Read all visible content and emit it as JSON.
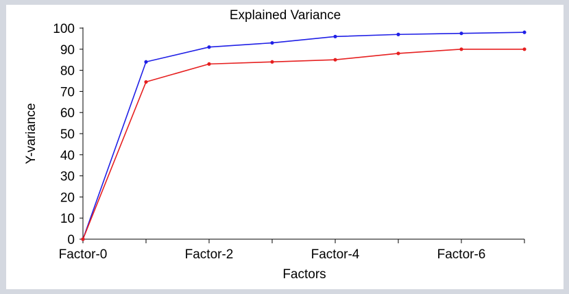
{
  "chart_data": {
    "type": "line",
    "title": "Explained Variance",
    "xlabel": "Factors",
    "ylabel": "Y-variance",
    "x": [
      0,
      1,
      2,
      3,
      4,
      5,
      6,
      7
    ],
    "x_tick_labels": [
      {
        "x": 0,
        "label": "Factor-0"
      },
      {
        "x": 2,
        "label": "Factor-2"
      },
      {
        "x": 4,
        "label": "Factor-4"
      },
      {
        "x": 6,
        "label": "Factor-6"
      }
    ],
    "ylim": [
      0,
      100
    ],
    "y_ticks": [
      0,
      10,
      20,
      30,
      40,
      50,
      60,
      70,
      80,
      90,
      100
    ],
    "grid": false,
    "series": [
      {
        "color": "#1f1fe6",
        "values": [
          0,
          84,
          91,
          93,
          96,
          97,
          97.5,
          98
        ]
      },
      {
        "color": "#e61f1f",
        "values": [
          0,
          74.5,
          83,
          84,
          85,
          88,
          90,
          90
        ]
      }
    ]
  }
}
